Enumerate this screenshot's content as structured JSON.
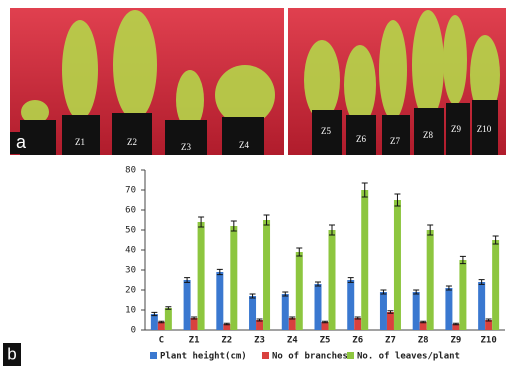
{
  "photo": {
    "panel_label": "a",
    "pot_labels": [
      "Z1",
      "Z2",
      "Z3",
      "Z4",
      "Z5",
      "Z6",
      "Z7",
      "Z8",
      "Z9",
      "Z10"
    ]
  },
  "chart_data": {
    "type": "bar",
    "panel_label": "b",
    "categories": [
      "C",
      "Z1",
      "Z2",
      "Z3",
      "Z4",
      "Z5",
      "Z6",
      "Z7",
      "Z8",
      "Z9",
      "Z10"
    ],
    "series": [
      {
        "name": "Plant height(cm)",
        "color": "#3a78d0",
        "values": [
          8,
          25,
          29,
          17,
          18,
          23,
          25,
          19,
          19,
          21,
          24
        ],
        "errors": [
          0.8,
          1.2,
          1.3,
          1,
          1,
          1,
          1.2,
          1,
          1,
          1,
          1.2
        ]
      },
      {
        "name": "No of branches",
        "color": "#d9413e",
        "values": [
          4,
          6,
          3,
          5,
          6,
          4,
          6,
          9,
          4,
          3,
          5
        ],
        "errors": [
          0.4,
          0.5,
          0.4,
          0.5,
          0.5,
          0.4,
          0.5,
          0.6,
          0.4,
          0.4,
          0.5
        ]
      },
      {
        "name": "No. of leaves/plant",
        "color": "#8dc63f",
        "values": [
          11,
          54,
          52,
          55,
          39,
          50,
          70,
          65,
          50,
          35,
          45
        ],
        "errors": [
          0.6,
          2.5,
          2.5,
          2.5,
          2,
          2.5,
          3.5,
          3,
          2.5,
          1.8,
          2
        ]
      }
    ],
    "ylim": [
      0,
      80
    ],
    "yticks": [
      0,
      10,
      20,
      30,
      40,
      50,
      60,
      70,
      80
    ],
    "grid": false,
    "legend": "bottom"
  }
}
